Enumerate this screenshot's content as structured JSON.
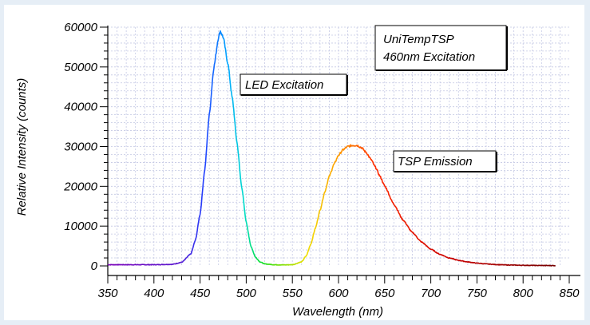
{
  "chart_data": {
    "type": "line",
    "xlabel": "Wavelength (nm)",
    "ylabel": "Relative Intensity (counts)",
    "xlim": [
      350,
      850
    ],
    "ylim": [
      0,
      60000
    ],
    "x_ticks": [
      "350",
      "400",
      "450",
      "500",
      "550",
      "600",
      "650",
      "700",
      "750",
      "800",
      "850"
    ],
    "y_ticks": [
      "0",
      "10000",
      "20000",
      "30000",
      "40000",
      "50000",
      "60000"
    ],
    "grid": true,
    "colormap": "rainbow by wavelength",
    "annotations": {
      "header_line1": "UniTempTSP",
      "header_line2": "460nm Excitation",
      "led_label": "LED Excitation",
      "tsp_label": "TSP Emission"
    },
    "series": [
      {
        "x": [
          350,
          400,
          420,
          430,
          440,
          445,
          450,
          455,
          460,
          465,
          470,
          472,
          475,
          480,
          485,
          490,
          495,
          500,
          505,
          510,
          515,
          520,
          530,
          540,
          550,
          560,
          565,
          570,
          575,
          580,
          585,
          590,
          595,
          600,
          605,
          610,
          615,
          620,
          625,
          630,
          635,
          640,
          645,
          650,
          660,
          670,
          680,
          690,
          700,
          710,
          720,
          730,
          740,
          750,
          760,
          770,
          780,
          800,
          820,
          835
        ],
        "y": [
          300,
          300,
          400,
          900,
          3000,
          6500,
          13000,
          24000,
          38000,
          50000,
          57500,
          59000,
          57500,
          51000,
          42000,
          31000,
          20000,
          11000,
          5000,
          2200,
          1000,
          500,
          300,
          250,
          300,
          1000,
          2500,
          5500,
          9500,
          14000,
          18500,
          22500,
          25500,
          27800,
          29200,
          30000,
          30300,
          30300,
          29700,
          28500,
          26800,
          24800,
          22500,
          20100,
          15500,
          11500,
          8400,
          6000,
          4200,
          2900,
          2000,
          1400,
          1000,
          700,
          500,
          350,
          250,
          150,
          100,
          80
        ]
      }
    ]
  }
}
